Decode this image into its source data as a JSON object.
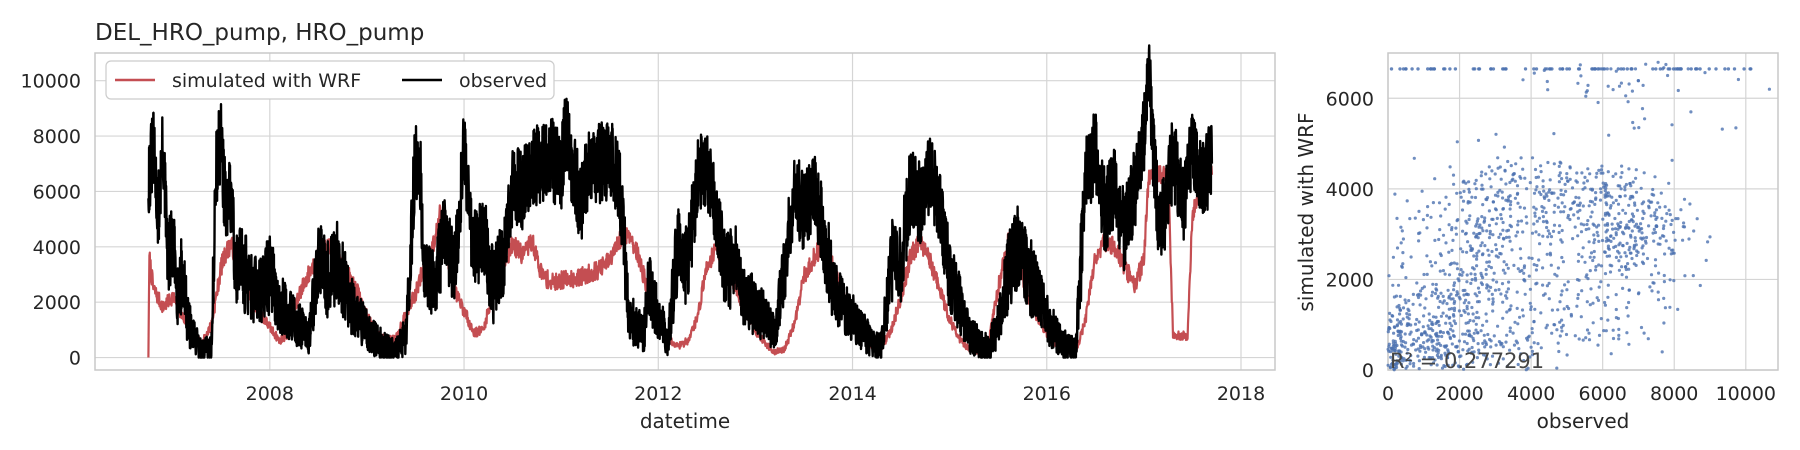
{
  "colors": {
    "simulated": "#c44e52",
    "observed": "#000000",
    "scatter": "#4c72b0",
    "grid": "#d5d5d5",
    "frame": "#c8c8c8"
  },
  "chart_data": [
    {
      "type": "line",
      "title": "DEL_HRO_pump, HRO_pump",
      "xlabel": "datetime",
      "ylabel": "",
      "xlim": [
        2006.2,
        2018.35
      ],
      "ylim": [
        -450,
        11000
      ],
      "xticks": [
        2008,
        2010,
        2012,
        2014,
        2016,
        2018
      ],
      "xtick_labels": [
        "2008",
        "2010",
        "2012",
        "2014",
        "2016",
        "2018"
      ],
      "yticks": [
        0,
        2000,
        4000,
        6000,
        8000,
        10000
      ],
      "ytick_labels": [
        "0",
        "2000",
        "4000",
        "6000",
        "8000",
        "10000"
      ],
      "grid": true,
      "legend": {
        "placement": "top-left",
        "entries": [
          "simulated with WRF",
          "observed"
        ]
      },
      "series": [
        {
          "name": "simulated with WRF",
          "color": "#c44e52",
          "x": [
            2006.75,
            2006.76,
            2006.8,
            2006.9,
            2007.0,
            2007.1,
            2007.2,
            2007.3,
            2007.4,
            2007.5,
            2007.55,
            2007.6,
            2007.7,
            2007.8,
            2007.9,
            2008.0,
            2008.1,
            2008.2,
            2008.3,
            2008.4,
            2008.5,
            2008.65,
            2008.8,
            2008.9,
            2009.0,
            2009.1,
            2009.2,
            2009.3,
            2009.4,
            2009.5,
            2009.6,
            2009.7,
            2009.75,
            2009.8,
            2009.9,
            2010.0,
            2010.1,
            2010.2,
            2010.3,
            2010.4,
            2010.5,
            2010.6,
            2010.7,
            2010.8,
            2010.9,
            2011.0,
            2011.2,
            2011.4,
            2011.5,
            2011.6,
            2011.7,
            2011.8,
            2011.9,
            2012.0,
            2012.1,
            2012.2,
            2012.3,
            2012.4,
            2012.5,
            2012.6,
            2012.7,
            2012.8,
            2012.9,
            2013.0,
            2013.1,
            2013.2,
            2013.3,
            2013.4,
            2013.5,
            2013.6,
            2013.7,
            2013.8,
            2013.9,
            2014.0,
            2014.1,
            2014.2,
            2014.3,
            2014.4,
            2014.5,
            2014.6,
            2014.7,
            2014.8,
            2014.9,
            2015.0,
            2015.1,
            2015.2,
            2015.3,
            2015.4,
            2015.5,
            2015.6,
            2015.7,
            2015.8,
            2015.9,
            2016.0,
            2016.1,
            2016.2,
            2016.3,
            2016.4,
            2016.5,
            2016.6,
            2016.7,
            2016.8,
            2016.9,
            2017.0,
            2017.05,
            2017.1,
            2017.2,
            2017.25,
            2017.3,
            2017.4,
            2017.45,
            2017.5,
            2017.6,
            2017.7
          ],
          "y": [
            0,
            3600,
            2500,
            1800,
            2200,
            1500,
            900,
            500,
            1200,
            3300,
            3800,
            4100,
            3200,
            2200,
            1600,
            1100,
            600,
            900,
            2300,
            3000,
            3700,
            4100,
            3000,
            2400,
            1500,
            900,
            600,
            700,
            1600,
            2300,
            3400,
            4200,
            5200,
            4300,
            2400,
            1700,
            900,
            1000,
            2400,
            3300,
            4100,
            3700,
            4200,
            3000,
            2700,
            2800,
            2900,
            3200,
            3500,
            4200,
            4500,
            3600,
            2300,
            1200,
            700,
            400,
            600,
            1400,
            3300,
            4000,
            3400,
            2500,
            1700,
            1000,
            500,
            200,
            300,
            1200,
            2900,
            3600,
            4100,
            3300,
            2200,
            1500,
            800,
            400,
            400,
            1000,
            2200,
            3700,
            4200,
            3500,
            2400,
            1400,
            700,
            300,
            200,
            500,
            2500,
            4200,
            3700,
            2300,
            1500,
            900,
            500,
            200,
            200,
            1400,
            3600,
            4200,
            4000,
            3300,
            2600,
            3500,
            6600,
            6600,
            6600,
            6600,
            800,
            800,
            700,
            5200,
            6300,
            6600
          ]
        },
        {
          "name": "observed",
          "color": "#000000",
          "x": [
            2006.75,
            2006.8,
            2006.85,
            2006.9,
            2006.95,
            2007.0,
            2007.05,
            2007.1,
            2007.15,
            2007.2,
            2007.3,
            2007.4,
            2007.45,
            2007.5,
            2007.55,
            2007.6,
            2007.65,
            2007.7,
            2007.8,
            2007.9,
            2008.0,
            2008.1,
            2008.2,
            2008.3,
            2008.4,
            2008.5,
            2008.6,
            2008.7,
            2008.8,
            2008.9,
            2009.0,
            2009.1,
            2009.2,
            2009.3,
            2009.4,
            2009.5,
            2009.55,
            2009.6,
            2009.7,
            2009.8,
            2009.9,
            2010.0,
            2010.1,
            2010.2,
            2010.3,
            2010.4,
            2010.5,
            2010.6,
            2010.7,
            2010.8,
            2010.9,
            2011.0,
            2011.05,
            2011.1,
            2011.2,
            2011.3,
            2011.4,
            2011.5,
            2011.6,
            2011.7,
            2011.8,
            2011.85,
            2011.9,
            2012.0,
            2012.1,
            2012.2,
            2012.3,
            2012.4,
            2012.5,
            2012.6,
            2012.7,
            2012.8,
            2012.9,
            2013.0,
            2013.1,
            2013.2,
            2013.3,
            2013.4,
            2013.5,
            2013.6,
            2013.7,
            2013.8,
            2013.9,
            2014.0,
            2014.1,
            2014.2,
            2014.3,
            2014.4,
            2014.5,
            2014.6,
            2014.7,
            2014.8,
            2014.9,
            2015.0,
            2015.1,
            2015.2,
            2015.3,
            2015.4,
            2015.5,
            2015.6,
            2015.7,
            2015.8,
            2015.9,
            2016.0,
            2016.1,
            2016.2,
            2016.3,
            2016.4,
            2016.5,
            2016.6,
            2016.7,
            2016.8,
            2016.9,
            2017.0,
            2017.05,
            2017.1,
            2017.15,
            2017.2,
            2017.3,
            2017.4,
            2017.5,
            2017.6,
            2017.7
          ],
          "y": [
            6500,
            7500,
            5200,
            7600,
            3500,
            4000,
            2500,
            3000,
            1500,
            800,
            200,
            500,
            7000,
            7900,
            5000,
            6000,
            3000,
            3500,
            2500,
            2500,
            3000,
            2000,
            1500,
            1200,
            800,
            3500,
            2800,
            3500,
            2200,
            1500,
            1000,
            600,
            400,
            300,
            800,
            7200,
            6500,
            2800,
            2600,
            4500,
            3000,
            7500,
            3800,
            4500,
            2500,
            3500,
            6400,
            6000,
            6800,
            7000,
            7200,
            6600,
            8500,
            7200,
            5600,
            7000,
            7000,
            7200,
            6300,
            1500,
            1000,
            800,
            2500,
            1500,
            600,
            4000,
            3200,
            6500,
            7000,
            5000,
            3000,
            3500,
            2200,
            1800,
            1500,
            800,
            3200,
            6000,
            5300,
            6000,
            4500,
            2500,
            2000,
            1400,
            1000,
            600,
            400,
            3500,
            3500,
            6200,
            5500,
            6800,
            5500,
            3000,
            2000,
            800,
            600,
            300,
            1200,
            3000,
            4000,
            3200,
            2300,
            1400,
            800,
            400,
            300,
            6400,
            7500,
            5200,
            6200,
            4500,
            6000,
            8000,
            10300,
            7400,
            4800,
            5000,
            7300,
            5500,
            7500,
            6500,
            7000
          ]
        }
      ]
    },
    {
      "type": "scatter",
      "title": "",
      "xlabel": "observed",
      "ylabel": "simulated with WRF",
      "xlim": [
        0,
        10900
      ],
      "ylim": [
        0,
        7000
      ],
      "xticks": [
        0,
        2000,
        4000,
        6000,
        8000,
        10000
      ],
      "xtick_labels": [
        "0",
        "2000",
        "4000",
        "6000",
        "8000",
        "10000"
      ],
      "yticks": [
        0,
        2000,
        4000,
        6000
      ],
      "ytick_labels": [
        "0",
        "2000",
        "4000",
        "6000"
      ],
      "grid": true,
      "annotation": "R² = 0.277291",
      "point_color": "#4c72b0"
    }
  ]
}
